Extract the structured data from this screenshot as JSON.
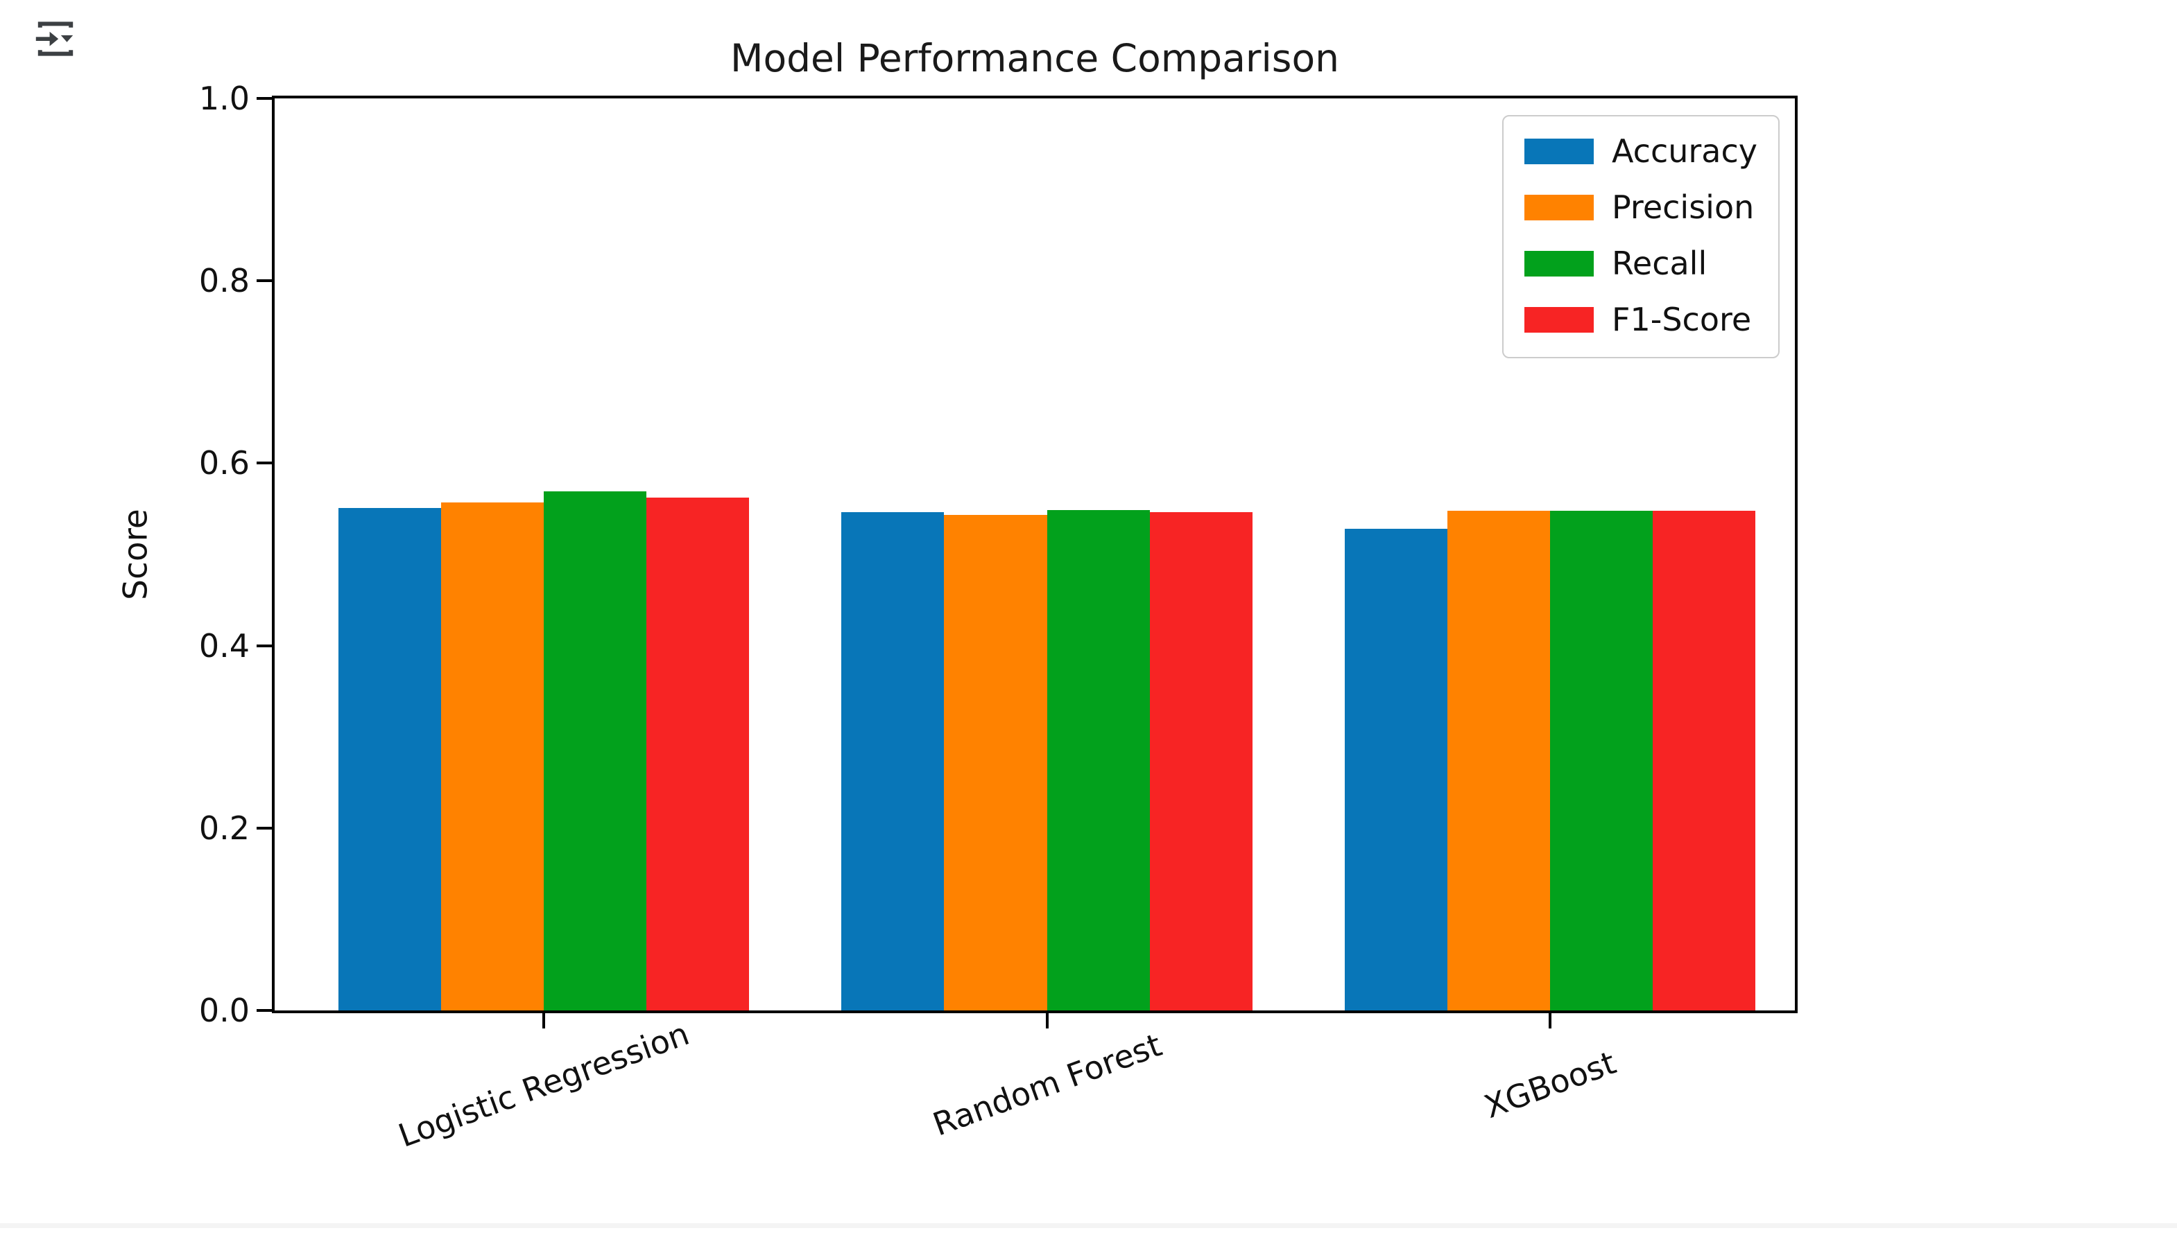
{
  "icons": {
    "top_left_toolbar": "insert-output-dropdown-icon",
    "icon_color": "#3c4043"
  },
  "chart_data": {
    "type": "bar",
    "title": "Model Performance Comparison",
    "xlabel": "",
    "ylabel": "Score",
    "categories": [
      "Logistic Regression",
      "Random Forest",
      "XGBoost"
    ],
    "series": [
      {
        "name": "Accuracy",
        "color": "#0876b8",
        "values": [
          0.551,
          0.546,
          0.528
        ]
      },
      {
        "name": "Precision",
        "color": "#ff8200",
        "values": [
          0.557,
          0.543,
          0.548
        ]
      },
      {
        "name": "Recall",
        "color": "#02a11c",
        "values": [
          0.569,
          0.549,
          0.548
        ]
      },
      {
        "name": "F1-Score",
        "color": "#f72424",
        "values": [
          0.562,
          0.546,
          0.548
        ]
      }
    ],
    "ylim": [
      0.0,
      1.0
    ],
    "yticks": [
      "0.0",
      "0.2",
      "0.4",
      "0.6",
      "0.8",
      "1.0"
    ],
    "xtick_rotation": 20,
    "grid": false,
    "legend_position": "upper right",
    "legend_labels": [
      "Accuracy",
      "Precision",
      "Recall",
      "F1-Score"
    ]
  }
}
